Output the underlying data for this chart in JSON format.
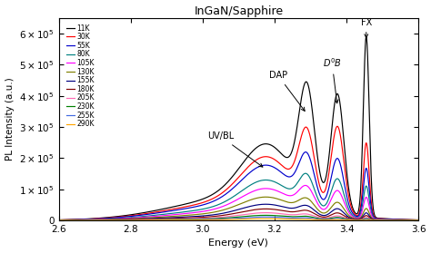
{
  "title": "InGaN/Sapphire",
  "xlabel": "Energy (eV)",
  "ylabel": "PL Intensity (a.u.)",
  "xlim": [
    2.6,
    3.6
  ],
  "ylim": [
    0,
    650000.0
  ],
  "yticks": [
    0,
    100000.0,
    200000.0,
    300000.0,
    400000.0,
    500000.0,
    600000.0
  ],
  "xticks": [
    2.6,
    2.8,
    3.0,
    3.2,
    3.4,
    3.6
  ],
  "temperatures": [
    "11K",
    "30K",
    "55K",
    "80K",
    "105K",
    "130K",
    "155K",
    "180K",
    "205K",
    "230K",
    "255K",
    "290K"
  ],
  "colors": [
    "#000000",
    "#ff0000",
    "#0000cc",
    "#008080",
    "#ff00ff",
    "#808000",
    "#000080",
    "#800000",
    "#ff69b4",
    "#008000",
    "#4169e1",
    "#ffa500"
  ],
  "peak_fx": [
    3.455,
    3.455,
    3.455,
    3.455,
    3.455,
    3.455,
    3.455,
    3.455,
    3.455,
    3.455,
    3.455,
    3.455
  ],
  "peak_d0b": [
    3.375,
    3.375,
    3.375,
    3.375,
    3.375,
    3.375,
    3.375,
    3.375,
    3.375,
    3.375,
    3.375,
    3.375
  ],
  "peak_dap": [
    3.29,
    3.29,
    3.29,
    3.29,
    3.29,
    3.29,
    3.29,
    3.29,
    3.29,
    3.29,
    3.29,
    3.29
  ],
  "peak_uvbl": [
    3.18,
    3.18,
    3.18,
    3.18,
    3.18,
    3.18,
    3.18,
    3.18,
    3.18,
    3.18,
    3.18,
    3.18
  ],
  "amp_fx": [
    580000.0,
    240000.0,
    160000.0,
    105000.0,
    70000.0,
    35000.0,
    22000.0,
    14000.0,
    8000.0,
    5000.0,
    3000.0,
    1000.0
  ],
  "amp_d0b": [
    380000.0,
    280000.0,
    180000.0,
    120000.0,
    85000.0,
    50000.0,
    32000.0,
    20000.0,
    12000.0,
    8000.0,
    5000.0,
    2000.0
  ],
  "amp_dap": [
    350000.0,
    220000.0,
    150000.0,
    100000.0,
    72000.0,
    43000.0,
    28000.0,
    18000.0,
    11000.0,
    7000.0,
    4000.0,
    1500.0
  ],
  "amp_uvbl": [
    180000.0,
    150000.0,
    130000.0,
    95000.0,
    75000.0,
    55000.0,
    38000.0,
    27000.0,
    18000.0,
    12000.0,
    8000.0,
    4000.0
  ],
  "sig_fx": 0.008,
  "sig_d0b": 0.018,
  "sig_dap": 0.022,
  "sig_uvbl": 0.07
}
